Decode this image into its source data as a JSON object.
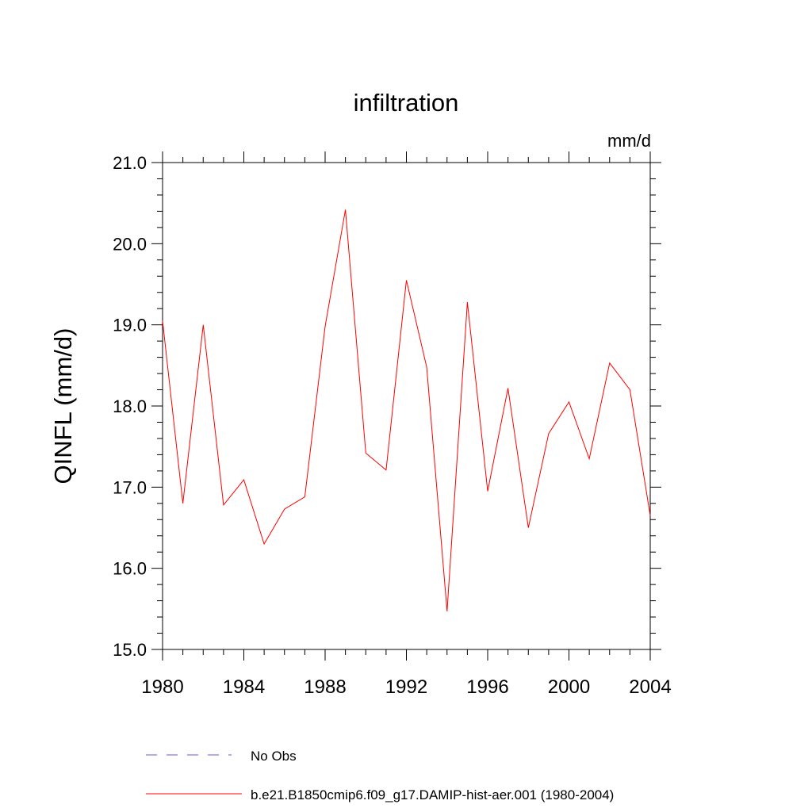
{
  "chart_data": {
    "type": "line",
    "title": "infiltration",
    "units_label": "mm/d",
    "ylabel": "QINFL  (mm/d)",
    "xlabel": "",
    "xlim": [
      1980,
      2004
    ],
    "ylim": [
      15.0,
      21.0
    ],
    "grid": false,
    "x_ticks": [
      "1980",
      "1984",
      "1988",
      "1992",
      "1996",
      "2000",
      "2004"
    ],
    "y_ticks": [
      "15.0",
      "16.0",
      "17.0",
      "18.0",
      "19.0",
      "20.0",
      "21.0"
    ],
    "series": [
      {
        "name": "b.e21.B1850cmip6.f09_g17.DAMIP-hist-aer.001 (1980-2004)",
        "color": "#ff0000",
        "style": "solid",
        "x": [
          1980,
          1981,
          1982,
          1983,
          1984,
          1985,
          1986,
          1987,
          1988,
          1989,
          1990,
          1991,
          1992,
          1993,
          1994,
          1995,
          1996,
          1997,
          1998,
          1999,
          2000,
          2001,
          2002,
          2003,
          2004
        ],
        "y": [
          19.05,
          16.8,
          19.0,
          16.78,
          17.09,
          16.3,
          16.73,
          16.88,
          18.98,
          20.42,
          17.42,
          17.21,
          19.55,
          18.48,
          15.47,
          19.28,
          16.95,
          18.22,
          16.5,
          17.66,
          18.05,
          17.35,
          18.53,
          18.2,
          16.65
        ]
      }
    ],
    "legend_placement": "bottom-left",
    "legend": [
      {
        "label": "No Obs",
        "color": "#6a5acd",
        "style": "dashed"
      },
      {
        "label": "b.e21.B1850cmip6.f09_g17.DAMIP-hist-aer.001 (1980-2004)",
        "color": "#ff0000",
        "style": "solid"
      }
    ]
  }
}
